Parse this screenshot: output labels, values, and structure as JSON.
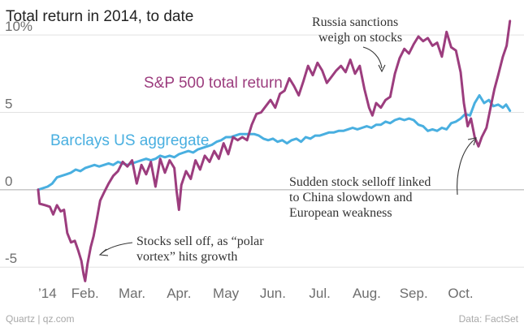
{
  "chart_data": {
    "type": "line",
    "title": "Total return in 2014, to date",
    "xlabel": "",
    "ylabel": "",
    "xlim": [
      0,
      10.35
    ],
    "ylim": [
      -6.3,
      11
    ],
    "x_tick_labels": [
      "’14",
      "Feb.",
      "Mar.",
      "Apr.",
      "May",
      "Jun.",
      "Jul.",
      "Aug.",
      "Sep.",
      "Oct."
    ],
    "x_tick_positions": [
      0,
      1,
      2,
      3,
      4,
      5,
      6,
      7,
      8,
      9
    ],
    "y_ticks": [
      {
        "value": 10,
        "label": "10%"
      },
      {
        "value": 5,
        "label": "5"
      },
      {
        "value": 0,
        "label": "0"
      },
      {
        "value": -5,
        "label": "-5"
      }
    ],
    "series": [
      {
        "name": "S&P 500 total return",
        "color": "#9c3d7e",
        "points": [
          [
            0,
            0
          ],
          [
            0.03,
            -0.9
          ],
          [
            0.15,
            -1.0
          ],
          [
            0.25,
            -1.1
          ],
          [
            0.32,
            -1.6
          ],
          [
            0.4,
            -1.0
          ],
          [
            0.48,
            -1.4
          ],
          [
            0.55,
            -1.3
          ],
          [
            0.62,
            -2.8
          ],
          [
            0.7,
            -3.4
          ],
          [
            0.78,
            -3.3
          ],
          [
            0.85,
            -3.9
          ],
          [
            0.92,
            -4.6
          ],
          [
            0.97,
            -5.5
          ],
          [
            1.0,
            -5.9
          ],
          [
            1.05,
            -4.8
          ],
          [
            1.12,
            -3.7
          ],
          [
            1.18,
            -3.0
          ],
          [
            1.25,
            -1.9
          ],
          [
            1.32,
            -0.7
          ],
          [
            1.4,
            -0.2
          ],
          [
            1.5,
            0.4
          ],
          [
            1.6,
            0.9
          ],
          [
            1.7,
            1.2
          ],
          [
            1.8,
            1.8
          ],
          [
            1.9,
            1.5
          ],
          [
            2.0,
            1.9
          ],
          [
            2.1,
            0.4
          ],
          [
            2.2,
            1.6
          ],
          [
            2.3,
            1.0
          ],
          [
            2.4,
            1.8
          ],
          [
            2.5,
            0.2
          ],
          [
            2.6,
            2.0
          ],
          [
            2.7,
            1.1
          ],
          [
            2.8,
            1.9
          ],
          [
            2.9,
            1.4
          ],
          [
            2.95,
            -0.1
          ],
          [
            3.0,
            -1.3
          ],
          [
            3.05,
            0.3
          ],
          [
            3.15,
            1.2
          ],
          [
            3.25,
            0.7
          ],
          [
            3.35,
            1.9
          ],
          [
            3.45,
            1.3
          ],
          [
            3.55,
            2.2
          ],
          [
            3.65,
            1.8
          ],
          [
            3.75,
            2.5
          ],
          [
            3.85,
            2.0
          ],
          [
            3.95,
            3.0
          ],
          [
            4.05,
            2.3
          ],
          [
            4.15,
            3.4
          ],
          [
            4.25,
            3.2
          ],
          [
            4.35,
            3.4
          ],
          [
            4.45,
            3.2
          ],
          [
            4.55,
            4.2
          ],
          [
            4.65,
            4.9
          ],
          [
            4.75,
            5.0
          ],
          [
            4.85,
            5.4
          ],
          [
            4.95,
            5.8
          ],
          [
            5.05,
            5.3
          ],
          [
            5.15,
            6.2
          ],
          [
            5.25,
            6.4
          ],
          [
            5.35,
            7.2
          ],
          [
            5.45,
            6.7
          ],
          [
            5.55,
            6.1
          ],
          [
            5.65,
            7.0
          ],
          [
            5.75,
            8.0
          ],
          [
            5.85,
            7.4
          ],
          [
            5.95,
            8.2
          ],
          [
            6.05,
            7.7
          ],
          [
            6.15,
            6.9
          ],
          [
            6.25,
            7.3
          ],
          [
            6.35,
            7.7
          ],
          [
            6.45,
            8.0
          ],
          [
            6.55,
            7.6
          ],
          [
            6.65,
            8.4
          ],
          [
            6.75,
            7.5
          ],
          [
            6.85,
            8.0
          ],
          [
            6.95,
            6.5
          ],
          [
            7.05,
            5.3
          ],
          [
            7.12,
            4.8
          ],
          [
            7.2,
            5.6
          ],
          [
            7.3,
            5.3
          ],
          [
            7.4,
            5.8
          ],
          [
            7.5,
            6.0
          ],
          [
            7.6,
            7.5
          ],
          [
            7.7,
            8.5
          ],
          [
            7.8,
            9.1
          ],
          [
            7.9,
            8.8
          ],
          [
            8.0,
            9.4
          ],
          [
            8.1,
            9.9
          ],
          [
            8.2,
            9.6
          ],
          [
            8.3,
            9.8
          ],
          [
            8.4,
            9.3
          ],
          [
            8.5,
            9.5
          ],
          [
            8.6,
            8.6
          ],
          [
            8.7,
            10.2
          ],
          [
            8.8,
            9.2
          ],
          [
            8.9,
            9.0
          ],
          [
            9.0,
            7.6
          ],
          [
            9.07,
            5.6
          ],
          [
            9.15,
            4.1
          ],
          [
            9.22,
            4.6
          ],
          [
            9.3,
            3.4
          ],
          [
            9.38,
            2.8
          ],
          [
            9.45,
            3.4
          ],
          [
            9.55,
            4.0
          ],
          [
            9.65,
            5.5
          ],
          [
            9.72,
            6.5
          ],
          [
            9.8,
            7.4
          ],
          [
            9.9,
            8.6
          ],
          [
            9.98,
            9.3
          ],
          [
            10.05,
            10.9
          ]
        ]
      },
      {
        "name": "Barclays US aggregate",
        "color": "#49afe0",
        "points": [
          [
            0,
            0
          ],
          [
            0.2,
            0.2
          ],
          [
            0.3,
            0.4
          ],
          [
            0.4,
            0.8
          ],
          [
            0.5,
            0.9
          ],
          [
            0.6,
            1.0
          ],
          [
            0.7,
            1.1
          ],
          [
            0.8,
            1.3
          ],
          [
            0.9,
            1.2
          ],
          [
            1.0,
            1.4
          ],
          [
            1.1,
            1.5
          ],
          [
            1.2,
            1.6
          ],
          [
            1.3,
            1.5
          ],
          [
            1.4,
            1.6
          ],
          [
            1.5,
            1.7
          ],
          [
            1.6,
            1.6
          ],
          [
            1.7,
            1.8
          ],
          [
            1.8,
            1.7
          ],
          [
            1.9,
            1.6
          ],
          [
            2.0,
            1.7
          ],
          [
            2.1,
            1.8
          ],
          [
            2.2,
            1.9
          ],
          [
            2.3,
            2.0
          ],
          [
            2.4,
            1.9
          ],
          [
            2.5,
            2.0
          ],
          [
            2.6,
            2.2
          ],
          [
            2.7,
            2.1
          ],
          [
            2.8,
            2.2
          ],
          [
            2.9,
            2.1
          ],
          [
            3.0,
            2.3
          ],
          [
            3.1,
            2.4
          ],
          [
            3.2,
            2.5
          ],
          [
            3.3,
            2.4
          ],
          [
            3.4,
            2.6
          ],
          [
            3.5,
            2.7
          ],
          [
            3.6,
            2.8
          ],
          [
            3.7,
            2.9
          ],
          [
            3.8,
            3.1
          ],
          [
            3.9,
            3.2
          ],
          [
            4.0,
            3.4
          ],
          [
            4.1,
            3.4
          ],
          [
            4.2,
            3.5
          ],
          [
            4.3,
            3.6
          ],
          [
            4.4,
            3.6
          ],
          [
            4.5,
            3.6
          ],
          [
            4.6,
            3.6
          ],
          [
            4.7,
            3.5
          ],
          [
            4.8,
            3.3
          ],
          [
            4.9,
            3.2
          ],
          [
            5.0,
            3.3
          ],
          [
            5.1,
            3.1
          ],
          [
            5.2,
            3.2
          ],
          [
            5.3,
            3.0
          ],
          [
            5.4,
            3.2
          ],
          [
            5.5,
            3.3
          ],
          [
            5.6,
            3.1
          ],
          [
            5.7,
            3.4
          ],
          [
            5.8,
            3.3
          ],
          [
            5.9,
            3.5
          ],
          [
            6.0,
            3.5
          ],
          [
            6.1,
            3.6
          ],
          [
            6.2,
            3.7
          ],
          [
            6.3,
            3.7
          ],
          [
            6.4,
            3.8
          ],
          [
            6.5,
            3.8
          ],
          [
            6.6,
            3.9
          ],
          [
            6.7,
            4.0
          ],
          [
            6.8,
            3.9
          ],
          [
            6.9,
            4.0
          ],
          [
            7.0,
            4.1
          ],
          [
            7.1,
            4.0
          ],
          [
            7.2,
            4.2
          ],
          [
            7.3,
            4.2
          ],
          [
            7.4,
            4.4
          ],
          [
            7.5,
            4.3
          ],
          [
            7.6,
            4.5
          ],
          [
            7.7,
            4.6
          ],
          [
            7.8,
            4.5
          ],
          [
            7.9,
            4.6
          ],
          [
            8.0,
            4.5
          ],
          [
            8.1,
            4.2
          ],
          [
            8.2,
            4.1
          ],
          [
            8.3,
            3.8
          ],
          [
            8.4,
            3.9
          ],
          [
            8.5,
            3.8
          ],
          [
            8.6,
            4.0
          ],
          [
            8.7,
            3.9
          ],
          [
            8.8,
            4.3
          ],
          [
            8.9,
            4.4
          ],
          [
            9.0,
            4.6
          ],
          [
            9.1,
            4.9
          ],
          [
            9.2,
            4.8
          ],
          [
            9.3,
            5.6
          ],
          [
            9.4,
            6.1
          ],
          [
            9.5,
            5.6
          ],
          [
            9.6,
            5.8
          ],
          [
            9.7,
            5.4
          ],
          [
            9.8,
            5.5
          ],
          [
            9.9,
            5.3
          ],
          [
            9.97,
            5.5
          ],
          [
            10.05,
            5.1
          ]
        ]
      }
    ],
    "series_labels": [
      "S&P 500 total return",
      "Barclays US aggregate"
    ],
    "annotations": [
      {
        "lines": [
          "Russia sanctions",
          "weigh on stocks"
        ]
      },
      {
        "lines": [
          "Sudden stock selloff linked",
          "to China slowdown and",
          "European weakness"
        ]
      },
      {
        "lines": [
          "Stocks sell off, as “polar",
          "vortex” hits growth"
        ]
      }
    ],
    "source_left": "Quartz | qz.com",
    "source_right": "Data: FactSet"
  }
}
